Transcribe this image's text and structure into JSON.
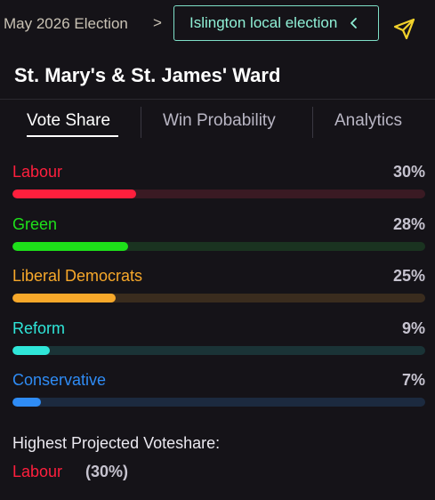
{
  "breadcrumb": {
    "parent": "May 2026 Election",
    "separator": ">",
    "current": "Islington local election"
  },
  "icons": {
    "pill_chevron": "chevron-left-icon",
    "send": "send-icon"
  },
  "ward": {
    "title": "St. Mary's & St. James' Ward"
  },
  "tabs": [
    {
      "label": "Vote Share",
      "active": true
    },
    {
      "label": "Win Probability",
      "active": false
    },
    {
      "label": "Analytics",
      "active": false
    }
  ],
  "parties": [
    {
      "name": "Labour",
      "share_text": "30%",
      "share": 30,
      "color": "#ff1f3d",
      "track": "#3a1a23"
    },
    {
      "name": "Green",
      "share_text": "28%",
      "share": 28,
      "color": "#1ee01a",
      "track": "#1a3320"
    },
    {
      "name": "Liberal Democrats",
      "share_text": "25%",
      "share": 25,
      "color": "#f7a82a",
      "track": "#3a2c1e"
    },
    {
      "name": "Reform",
      "share_text": "9%",
      "share": 9,
      "color": "#2fe6d9",
      "track": "#1a3336"
    },
    {
      "name": "Conservative",
      "share_text": "7%",
      "share": 7,
      "color": "#2f8cf5",
      "track": "#1c2a3f"
    }
  ],
  "summary": {
    "label": "Highest Projected Voteshare:",
    "party": "Labour",
    "party_color": "#ff1f3d",
    "pct": "(30%)"
  },
  "colors": {
    "background": "#151318",
    "accent_teal": "#8ff0d6",
    "send_icon": "#f2d22b"
  }
}
